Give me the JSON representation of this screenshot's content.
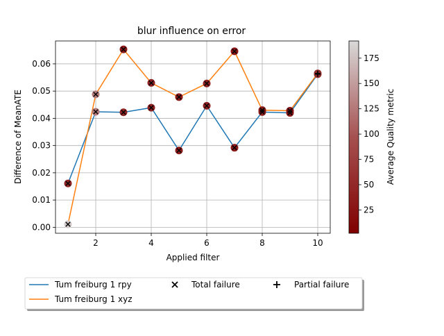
{
  "chart_data": {
    "type": "line",
    "title": "blur influence on error",
    "xlabel": "Applied filter",
    "ylabel": "Difference of MeanATE",
    "xlim": [
      0.55,
      10.45
    ],
    "ylim": [
      -0.0022,
      0.0684
    ],
    "xticks": [
      2,
      4,
      6,
      8,
      10
    ],
    "yticks": [
      0.0,
      0.01,
      0.02,
      0.03,
      0.04,
      0.05,
      0.06
    ],
    "ytick_labels": [
      "0.00",
      "0.01",
      "0.02",
      "0.03",
      "0.04",
      "0.05",
      "0.06"
    ],
    "grid": true,
    "x": [
      1,
      2,
      3,
      4,
      5,
      6,
      7,
      8,
      9,
      10
    ],
    "series": [
      {
        "name": "Tum freiburg 1 rpy",
        "color": "#1f77b4",
        "values": [
          0.0161,
          0.0424,
          0.0422,
          0.0439,
          0.0282,
          0.0446,
          0.0292,
          0.0423,
          0.042,
          0.0562
        ],
        "quality": [
          35,
          110,
          35,
          30,
          25,
          30,
          25,
          30,
          25,
          40
        ]
      },
      {
        "name": "Tum freiburg 1 xyz",
        "color": "#ff7f0e",
        "values": [
          0.0011,
          0.0488,
          0.0653,
          0.053,
          0.0478,
          0.0528,
          0.0646,
          0.043,
          0.0428,
          0.0565
        ],
        "quality": [
          180,
          110,
          25,
          30,
          25,
          30,
          20,
          25,
          20,
          40
        ]
      }
    ],
    "total_failure_points": [
      {
        "x": 1,
        "y": 0.0161
      },
      {
        "x": 2,
        "y": 0.0424
      },
      {
        "x": 3,
        "y": 0.0422
      },
      {
        "x": 4,
        "y": 0.0439
      },
      {
        "x": 5,
        "y": 0.0282
      },
      {
        "x": 6,
        "y": 0.0446
      },
      {
        "x": 7,
        "y": 0.0292
      },
      {
        "x": 8,
        "y": 0.0423
      },
      {
        "x": 9,
        "y": 0.042
      },
      {
        "x": 1,
        "y": 0.0011
      },
      {
        "x": 2,
        "y": 0.0488
      },
      {
        "x": 3,
        "y": 0.0653
      },
      {
        "x": 4,
        "y": 0.053
      },
      {
        "x": 5,
        "y": 0.0478
      },
      {
        "x": 6,
        "y": 0.0528
      },
      {
        "x": 7,
        "y": 0.0646
      },
      {
        "x": 8,
        "y": 0.043
      },
      {
        "x": 9,
        "y": 0.0428
      }
    ],
    "partial_failure_points": [
      {
        "x": 10,
        "y": 0.0562
      },
      {
        "x": 10,
        "y": 0.0565
      }
    ],
    "colorbar": {
      "label": "Average Quality metric",
      "range": [
        2,
        192
      ],
      "ticks": [
        25,
        50,
        75,
        100,
        125,
        150,
        175
      ],
      "cmap_low": "#800000",
      "cmap_high": "#d9d9d9"
    },
    "legend": {
      "placement": "bottom",
      "entries": [
        {
          "label": "Tum freiburg 1 rpy",
          "marker": "line",
          "color": "#1f77b4"
        },
        {
          "label": "Tum freiburg 1 xyz",
          "marker": "line",
          "color": "#ff7f0e"
        },
        {
          "label": "Total failure",
          "marker": "x",
          "color": "#000000"
        },
        {
          "label": "Partial failure",
          "marker": "+",
          "color": "#000000"
        }
      ]
    }
  }
}
